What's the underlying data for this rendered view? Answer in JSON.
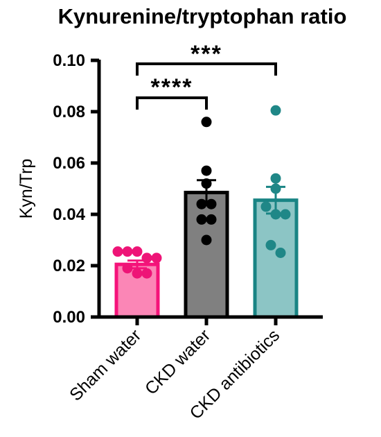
{
  "chart_data": {
    "type": "bar",
    "title": "Kynurenine/tryptophan ratio",
    "ylabel": "Kyn/Trp",
    "xlabel": "",
    "ylim": [
      0,
      0.1
    ],
    "yticks": [
      "0.00",
      "0.02",
      "0.04",
      "0.06",
      "0.08",
      "0.10"
    ],
    "grid": false,
    "categories": [
      "Sham water",
      "CKD water",
      "CKD antibiotics"
    ],
    "values": [
      0.0205,
      0.0485,
      0.0455
    ],
    "sem": [
      0.0015,
      0.0048,
      0.0052
    ],
    "points": [
      [
        0.0255,
        0.0255,
        0.0255,
        0.023,
        0.023,
        0.019,
        0.017,
        0.017
      ],
      [
        0.076,
        0.057,
        0.052,
        0.044,
        0.044,
        0.038,
        0.038,
        0.03
      ],
      [
        0.0805,
        0.054,
        0.05,
        0.043,
        0.04,
        0.04,
        0.028,
        0.025
      ]
    ],
    "colors": {
      "fills": [
        "#fb86b6",
        "#808080",
        "#8cc5c5"
      ],
      "edges": [
        "#f5137a",
        "#000000",
        "#198484"
      ],
      "dots": [
        "#ee1477",
        "#000000",
        "#1f8787"
      ]
    },
    "significance": [
      {
        "from": 0,
        "to": 1,
        "label": "****"
      },
      {
        "from": 0,
        "to": 2,
        "label": "***"
      }
    ]
  }
}
